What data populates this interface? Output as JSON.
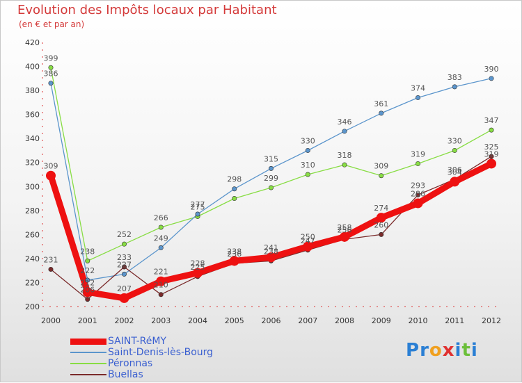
{
  "chart_data": {
    "type": "line",
    "title": "Evolution des Impôts locaux par Habitant",
    "subtitle": "(en € et par an)",
    "xlabel": "",
    "ylabel": "",
    "ylim": [
      200,
      420
    ],
    "yticks": [
      200,
      220,
      240,
      260,
      280,
      300,
      320,
      340,
      360,
      380,
      400,
      420
    ],
    "categories": [
      "2000",
      "2001",
      "2002",
      "2003",
      "2004",
      "2005",
      "2006",
      "2007",
      "2008",
      "2009",
      "2010",
      "2011",
      "2012"
    ],
    "grid": false,
    "legend_position": "bottom-left",
    "series": [
      {
        "name": "SAINT-RéMY",
        "color": "#ee1111",
        "values": [
          309,
          212,
          207,
          221,
          228,
          238,
          241,
          250,
          258,
          274,
          286,
          304,
          319
        ],
        "labels": [
          "309",
          "212",
          "207",
          "221",
          "228",
          "238",
          "241",
          "250",
          "258",
          "274",
          "286",
          "304",
          "319"
        ]
      },
      {
        "name": "Saint-Denis-lès-Bourg",
        "color": "#5b95cc",
        "values": [
          386,
          222,
          227,
          249,
          277,
          298,
          315,
          330,
          346,
          361,
          374,
          383,
          390
        ],
        "labels": [
          "386",
          "222",
          "227",
          "249",
          "277",
          "298",
          "315",
          "330",
          "346",
          "361",
          "374",
          "383",
          "390"
        ]
      },
      {
        "name": "Péronnas",
        "color": "#88dd44",
        "values": [
          399,
          238,
          252,
          266,
          275,
          290,
          299,
          310,
          318,
          309,
          319,
          330,
          347
        ],
        "labels": [
          "399",
          "238",
          "252",
          "266",
          "275",
          "",
          "299",
          "310",
          "318",
          "309",
          "319",
          "330",
          "347"
        ]
      },
      {
        "name": "Buellas",
        "color": "#7a2a2a",
        "values": [
          231,
          206,
          233,
          210,
          225,
          236,
          238,
          247,
          256,
          260,
          293,
          306,
          325
        ],
        "labels": [
          "231",
          "206",
          "233",
          "210",
          "225",
          "236",
          "238",
          "247",
          "256",
          "260",
          "293",
          "306",
          "325"
        ]
      }
    ]
  },
  "brand": {
    "letters": [
      "P",
      "r",
      "o",
      "x",
      "i",
      "t",
      "i"
    ],
    "colors": [
      "#2a7fd4",
      "#2a7fd4",
      "#f0a020",
      "#e03030",
      "#2a7fd4",
      "#6cbf3a",
      "#2a7fd4"
    ]
  }
}
